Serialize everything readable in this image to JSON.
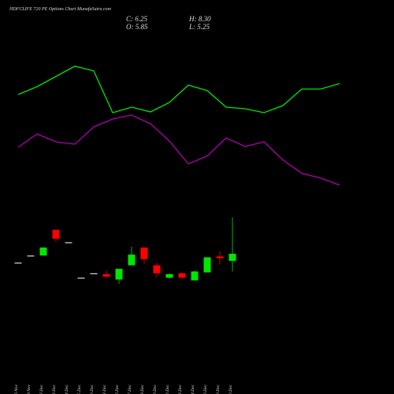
{
  "chart_data": {
    "type": "candlestick",
    "title": "HDFCLIFE 720 PE Options Chart MunafaSutra.com",
    "close_label": "C: 6.25",
    "high_label": "H: 8.30",
    "open_label": "O: 5.85",
    "low_label": "L: 5.25",
    "categories": [
      "26 Nov",
      "28 Nov",
      "02 Dec",
      "03 Dec",
      "04 Dec",
      "05 Dec",
      "09 Dec",
      "13 Dec",
      "16 Dec",
      "17 Dec",
      "18 Dec",
      "19 Dec",
      "22 Dec",
      "23 Dec",
      "24 Dec",
      "26 Dec",
      "29 Dec",
      "30 Dec"
    ],
    "open": [
      5.75,
      6.15,
      6.15,
      7.6,
      6.9,
      4.9,
      5.15,
      5.1,
      4.8,
      5.6,
      6.6,
      5.6,
      4.9,
      5.15,
      4.75,
      5.2,
      6.1,
      5.85
    ],
    "close": [
      5.75,
      6.15,
      6.6,
      7.1,
      6.9,
      4.9,
      5.15,
      4.95,
      5.4,
      6.2,
      5.95,
      5.15,
      5.1,
      4.9,
      5.25,
      6.05,
      6.0,
      6.25
    ],
    "high": [
      5.75,
      6.15,
      6.6,
      7.6,
      6.9,
      4.9,
      5.15,
      5.3,
      5.4,
      6.65,
      6.6,
      5.75,
      5.15,
      5.2,
      5.3,
      6.05,
      6.4,
      8.3
    ],
    "low": [
      5.75,
      6.15,
      6.15,
      6.9,
      6.9,
      4.9,
      5.15,
      4.95,
      4.55,
      5.6,
      5.7,
      4.95,
      4.85,
      4.85,
      4.75,
      5.2,
      5.65,
      5.25
    ],
    "up_color": "#00e600",
    "down_color": "#ff0000",
    "ylim": [
      2.5,
      9.5
    ],
    "series": [
      {
        "color": "#00e600",
        "axis": "y2",
        "values": [
          70,
          75,
          81.5,
          88,
          85,
          58.5,
          62,
          59,
          65,
          76,
          72.5,
          62,
          61,
          58.5,
          63,
          73.5,
          73.5,
          77
        ]
      },
      {
        "color": "#b000b0",
        "axis": "y2",
        "values": [
          36.5,
          45,
          40,
          38.5,
          49.5,
          54.5,
          57,
          51.5,
          40.5,
          26,
          31,
          42.5,
          37,
          40,
          28.5,
          20,
          17,
          12.5
        ]
      }
    ],
    "y2lim": [
      0,
      100
    ]
  }
}
